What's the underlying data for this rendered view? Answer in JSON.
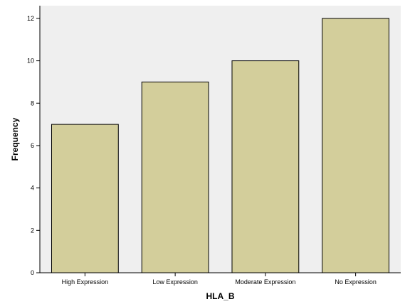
{
  "chart_data": {
    "type": "bar",
    "title": "",
    "xlabel": "HLA_B",
    "ylabel": "Frequency",
    "categories": [
      "High Expression",
      "Low Expression",
      "Moderate Expression",
      "No Expression"
    ],
    "values": [
      7,
      9,
      10,
      12
    ],
    "ylim": [
      0,
      12.6
    ],
    "yticks": [
      0,
      2,
      4,
      6,
      8,
      10,
      12
    ],
    "grid": false,
    "legend": "none",
    "colors": {
      "bar_fill": "#d3ce9b",
      "bar_stroke": "#000000",
      "plot_background": "#efefef",
      "axis": "#000000"
    }
  }
}
